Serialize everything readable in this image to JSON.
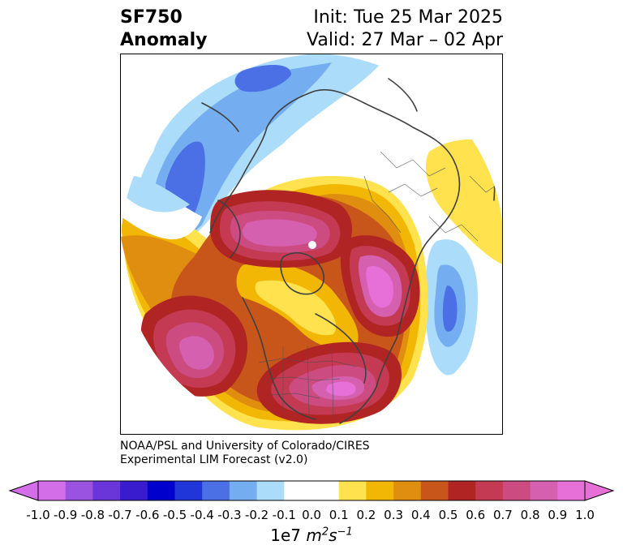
{
  "title": {
    "variable": "SF750",
    "subtitle": "Anomaly",
    "init": "Init: Tue 25 Mar 2025",
    "valid": "Valid: 27 Mar – 02 Apr"
  },
  "credit": {
    "line1": "NOAA/PSL and University of Colorado/CIRES",
    "line2": "Experimental LIM Forecast (v2.0)"
  },
  "colorbar": {
    "levels": [
      "-1.0",
      "-0.9",
      "-0.8",
      "-0.7",
      "-0.6",
      "-0.5",
      "-0.4",
      "-0.3",
      "-0.2",
      "-0.1",
      "0.0",
      "0.1",
      "0.2",
      "0.3",
      "0.4",
      "0.5",
      "0.6",
      "0.7",
      "0.8",
      "0.9",
      "1.0"
    ],
    "colors": [
      "#d46ee8",
      "#9a52e0",
      "#6a35d9",
      "#3a1ccf",
      "#0000cc",
      "#2036d8",
      "#4b70e6",
      "#74aef0",
      "#abdcfa",
      "#ffffff",
      "#ffffff",
      "#ffe24d",
      "#f2b705",
      "#df8e10",
      "#c8561a",
      "#b02424",
      "#c43a52",
      "#cc4c82",
      "#d660b0",
      "#e670d8"
    ],
    "units_prefix": "1e7 ",
    "units_m": "m",
    "units_m_exp": "2",
    "units_s": "s",
    "units_s_exp": "−1"
  }
}
